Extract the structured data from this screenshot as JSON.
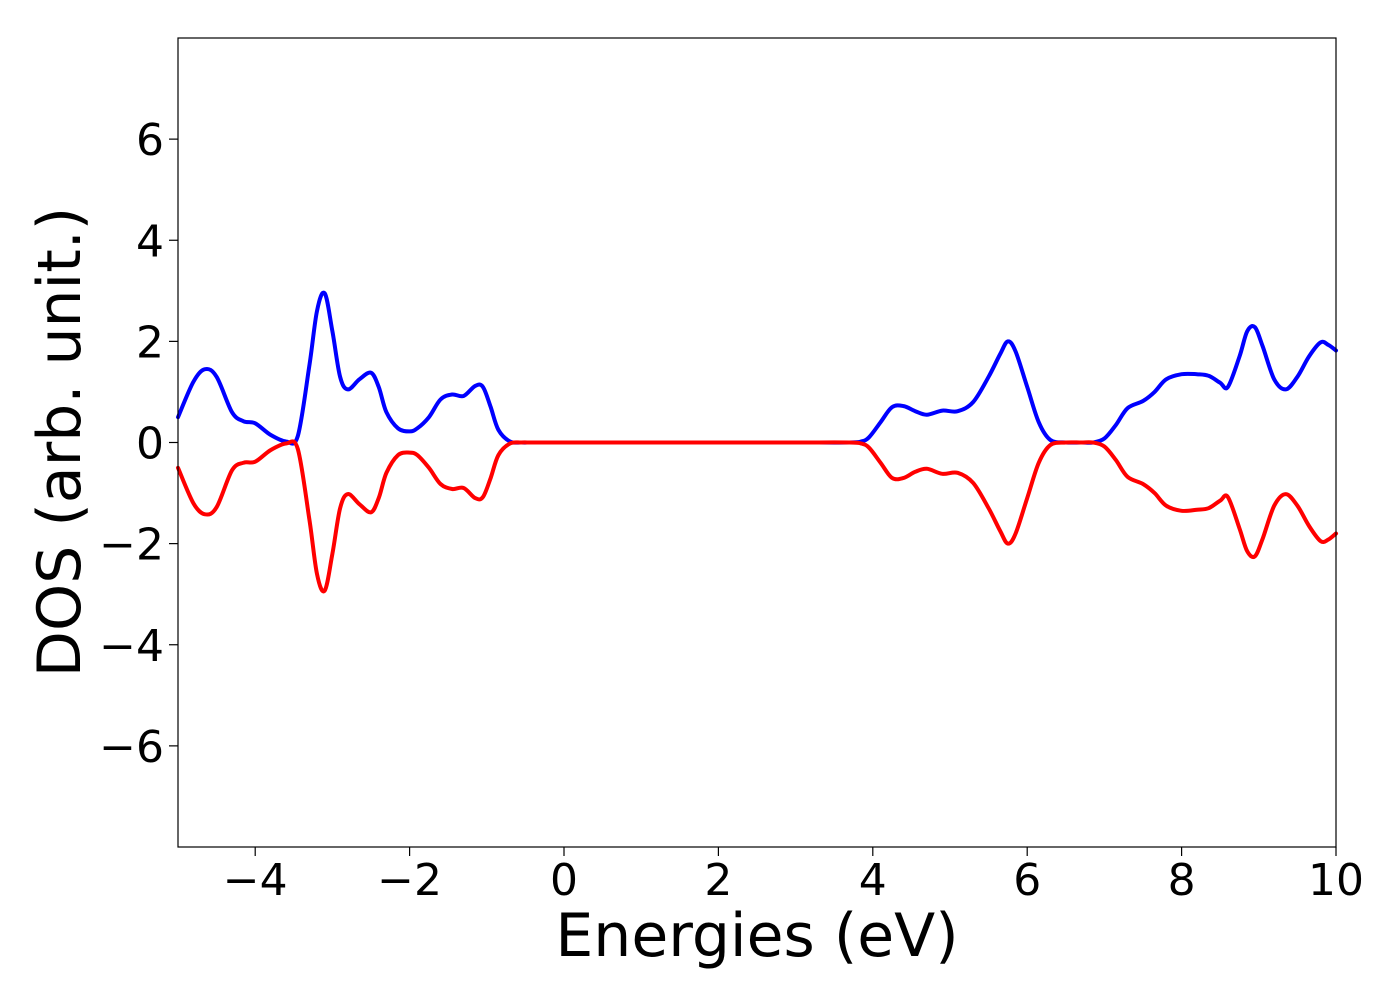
{
  "chart_data": {
    "type": "line",
    "title": "",
    "xlabel": "Energies (eV)",
    "ylabel": "DOS (arb. unit.)",
    "xlim": [
      -5,
      10
    ],
    "ylim": [
      -8,
      8
    ],
    "grid": false,
    "legend": "none",
    "x_ticks": [
      {
        "value": -4,
        "label": "−4"
      },
      {
        "value": -2,
        "label": "−2"
      },
      {
        "value": 0,
        "label": "0"
      },
      {
        "value": 2,
        "label": "2"
      },
      {
        "value": 4,
        "label": "4"
      },
      {
        "value": 6,
        "label": "6"
      },
      {
        "value": 8,
        "label": "8"
      },
      {
        "value": 10,
        "label": "10"
      }
    ],
    "y_ticks": [
      {
        "value": -6,
        "label": "−6"
      },
      {
        "value": -4,
        "label": "−4"
      },
      {
        "value": -2,
        "label": "−2"
      },
      {
        "value": 0,
        "label": "0"
      },
      {
        "value": 2,
        "label": "2"
      },
      {
        "value": 4,
        "label": "4"
      },
      {
        "value": 6,
        "label": "6"
      }
    ],
    "series": [
      {
        "color": "#0000ff",
        "x": [
          -5.0,
          -4.8,
          -4.65,
          -4.5,
          -4.3,
          -4.15,
          -4.0,
          -3.8,
          -3.6,
          -3.45,
          -3.3,
          -3.2,
          -3.1,
          -3.0,
          -2.9,
          -2.8,
          -2.65,
          -2.5,
          -2.4,
          -2.3,
          -2.15,
          -2.0,
          -1.9,
          -1.75,
          -1.6,
          -1.45,
          -1.3,
          -1.15,
          -1.05,
          -0.95,
          -0.85,
          -0.7,
          -0.55,
          -0.4,
          0.0,
          1.0,
          2.0,
          3.0,
          3.7,
          3.85,
          3.95,
          4.1,
          4.25,
          4.4,
          4.55,
          4.7,
          4.9,
          5.1,
          5.3,
          5.5,
          5.65,
          5.75,
          5.85,
          6.0,
          6.15,
          6.3,
          6.5,
          6.7,
          6.85,
          7.0,
          7.15,
          7.3,
          7.5,
          7.65,
          7.8,
          8.0,
          8.2,
          8.35,
          8.5,
          8.6,
          8.75,
          8.85,
          8.95,
          9.05,
          9.2,
          9.35,
          9.5,
          9.65,
          9.8,
          9.9,
          10.0
        ],
        "y": [
          0.5,
          1.2,
          1.45,
          1.3,
          0.6,
          0.42,
          0.38,
          0.15,
          0.02,
          0.12,
          1.5,
          2.6,
          2.95,
          2.2,
          1.3,
          1.05,
          1.25,
          1.38,
          1.1,
          0.6,
          0.28,
          0.22,
          0.28,
          0.5,
          0.85,
          0.95,
          0.92,
          1.12,
          1.1,
          0.7,
          0.25,
          0.02,
          0.0,
          0.0,
          0.0,
          0.0,
          0.0,
          0.0,
          0.0,
          0.02,
          0.1,
          0.4,
          0.7,
          0.72,
          0.62,
          0.55,
          0.63,
          0.62,
          0.8,
          1.3,
          1.75,
          2.0,
          1.8,
          1.1,
          0.4,
          0.05,
          0.0,
          0.0,
          0.0,
          0.08,
          0.35,
          0.68,
          0.82,
          1.0,
          1.25,
          1.35,
          1.35,
          1.32,
          1.18,
          1.1,
          1.7,
          2.2,
          2.28,
          1.9,
          1.25,
          1.05,
          1.3,
          1.7,
          1.98,
          1.93,
          1.82
        ]
      },
      {
        "color": "#ff0000",
        "x": [
          -5.0,
          -4.8,
          -4.65,
          -4.5,
          -4.3,
          -4.15,
          -4.0,
          -3.8,
          -3.6,
          -3.45,
          -3.3,
          -3.2,
          -3.1,
          -3.0,
          -2.9,
          -2.8,
          -2.65,
          -2.5,
          -2.4,
          -2.3,
          -2.15,
          -2.0,
          -1.9,
          -1.75,
          -1.6,
          -1.45,
          -1.3,
          -1.15,
          -1.05,
          -0.95,
          -0.85,
          -0.7,
          -0.55,
          -0.4,
          0.0,
          1.0,
          2.0,
          3.0,
          3.7,
          3.85,
          3.95,
          4.1,
          4.25,
          4.4,
          4.55,
          4.7,
          4.9,
          5.1,
          5.3,
          5.5,
          5.65,
          5.75,
          5.85,
          6.0,
          6.15,
          6.3,
          6.5,
          6.7,
          6.85,
          7.0,
          7.15,
          7.3,
          7.5,
          7.65,
          7.8,
          8.0,
          8.2,
          8.35,
          8.5,
          8.6,
          8.75,
          8.85,
          8.95,
          9.05,
          9.2,
          9.35,
          9.5,
          9.65,
          9.8,
          9.9,
          10.0
        ],
        "y": [
          -0.5,
          -1.2,
          -1.42,
          -1.28,
          -0.55,
          -0.4,
          -0.38,
          -0.15,
          -0.02,
          -0.12,
          -1.5,
          -2.6,
          -2.93,
          -2.2,
          -1.3,
          -1.02,
          -1.22,
          -1.38,
          -1.1,
          -0.6,
          -0.25,
          -0.2,
          -0.25,
          -0.5,
          -0.82,
          -0.92,
          -0.9,
          -1.1,
          -1.08,
          -0.7,
          -0.25,
          -0.02,
          0.0,
          0.0,
          0.0,
          0.0,
          0.0,
          0.0,
          0.0,
          -0.02,
          -0.1,
          -0.4,
          -0.7,
          -0.7,
          -0.58,
          -0.52,
          -0.62,
          -0.6,
          -0.8,
          -1.3,
          -1.75,
          -2.0,
          -1.8,
          -1.1,
          -0.4,
          -0.05,
          0.0,
          0.0,
          0.0,
          -0.08,
          -0.35,
          -0.68,
          -0.82,
          -1.0,
          -1.25,
          -1.35,
          -1.33,
          -1.3,
          -1.15,
          -1.08,
          -1.7,
          -2.15,
          -2.25,
          -1.9,
          -1.25,
          -1.02,
          -1.25,
          -1.65,
          -1.95,
          -1.92,
          -1.8
        ]
      }
    ]
  }
}
